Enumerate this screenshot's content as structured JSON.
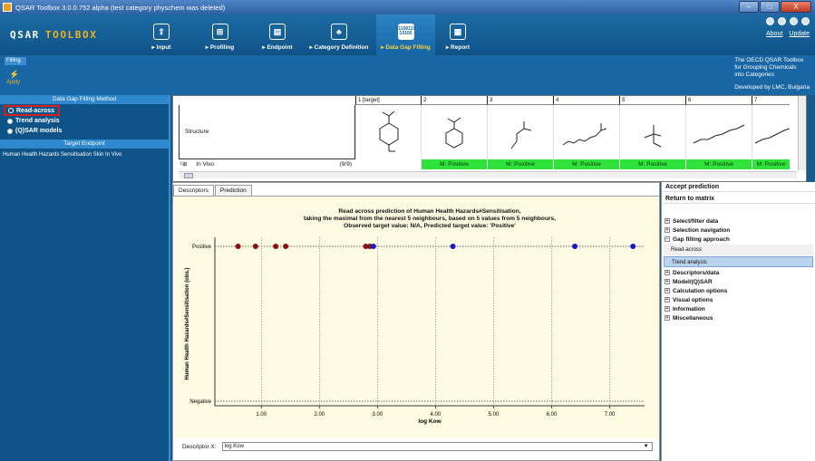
{
  "window": {
    "title": "QSAR Toolbox 3.0.0.752 alpha (test category physchem was deleted)",
    "controls": [
      "–",
      "□",
      "X"
    ]
  },
  "logo": {
    "word1": "QSAR",
    "word2": "TOOLBOX"
  },
  "nav": {
    "tabs": [
      {
        "label": "▸ Input",
        "icon": "⇪"
      },
      {
        "label": "▸ Profiling",
        "icon": "⊞"
      },
      {
        "label": "▸ Endpoint",
        "icon": "▤"
      },
      {
        "label": "▸ Category Definition",
        "icon": "♣"
      },
      {
        "label": "▸ Data Gap Filling",
        "icon": "01100110 10100",
        "active": true
      },
      {
        "label": "▸ Report",
        "icon": "▦"
      }
    ],
    "about": "About",
    "update": "Update"
  },
  "subribbon": {
    "tab": "Filling",
    "apply": "Apply"
  },
  "oecd": {
    "line1": "The OECD QSAR Toolbox",
    "line2": "for Grouping Chemicals",
    "line3": "into Categories",
    "dev": "Developed by LMC, Bulgaria"
  },
  "left": {
    "method_header": "Data Gap Filling Method",
    "methods": [
      {
        "label": "Read-across",
        "selected": true
      },
      {
        "label": "Trend analysis",
        "selected": false
      },
      {
        "label": "(Q)SAR models",
        "selected": false
      }
    ],
    "target_header": "Target Endpoint",
    "target_text": "Human Health Hazards Sensitisation Skin In Vivo"
  },
  "matrix": {
    "columns": [
      "1 [target]",
      "2",
      "3",
      "4",
      "5",
      "6",
      "7"
    ],
    "structure_label": "Structure",
    "row_label": "In Vivo",
    "row_count": "(9/9)",
    "values": [
      "",
      "M: Positive",
      "M: Positive",
      "M: Positive",
      "M: Positive",
      "M: Positive",
      "M: Positive"
    ]
  },
  "tabs": {
    "descriptors": "Descriptors",
    "prediction": "Prediction"
  },
  "chart_data": {
    "type": "scatter",
    "title": [
      "Read across prediction of Human Health Hazards#Sensitisation,",
      "taking the maximal from the nearest 5 neighbours, based on 5 values from 5 neighbours,",
      "Observed target value: N/A, Predicted target value: 'Positive'"
    ],
    "xlabel": "log Kow",
    "ylabel": "Human Health Hazards#Sensitisation (obs.)",
    "categories": [
      "Negative",
      "Positive"
    ],
    "xlim": [
      0.2,
      7.6
    ],
    "xticks": [
      "1.00",
      "2.00",
      "3.00",
      "4.00",
      "5.00",
      "6.00",
      "7.00"
    ],
    "series": [
      {
        "color": "#8b1010",
        "points": [
          0.6,
          0.9,
          1.25,
          1.42,
          2.8,
          2.87
        ]
      },
      {
        "color": "#1818c8",
        "points": [
          2.93,
          4.3,
          6.4,
          7.4
        ]
      }
    ],
    "grid": true
  },
  "descriptor": {
    "label": "Descriptor X:",
    "value": "log Kow"
  },
  "right": {
    "accept": "Accept prediction",
    "return": "Return to matrix",
    "items": [
      "Select/filter data",
      "Selection navigation",
      "Gap filling approach"
    ],
    "approaches": [
      {
        "label": "Read-across",
        "selected": false
      },
      {
        "label": "Trend analysis",
        "selected": true
      }
    ],
    "items2": [
      "Descriptors/data",
      "Model/(Q)SAR",
      "Calculation options",
      "Visual options",
      "Information",
      "Miscellaneous"
    ]
  },
  "colors": {
    "accent": "#1866a3",
    "positive": "#2fe33a",
    "dot_red": "#8b1010",
    "dot_blue": "#1818c8",
    "plot_bg": "#fdfce3"
  }
}
